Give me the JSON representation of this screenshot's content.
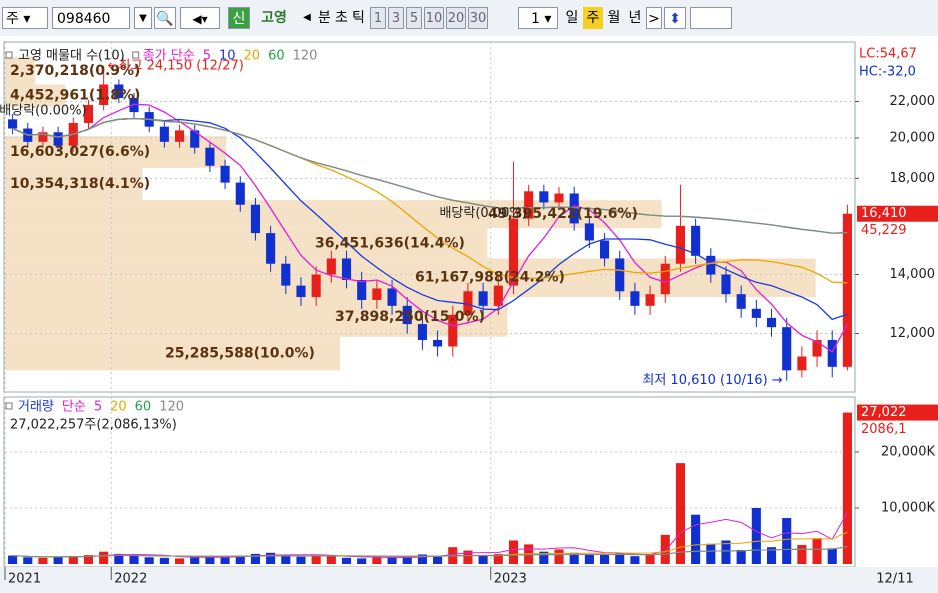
{
  "toolbar": {
    "market": "주",
    "code": "098460",
    "badge": "신",
    "name": "고영",
    "units": [
      "분",
      "초",
      "틱"
    ],
    "intervals": [
      "1",
      "3",
      "5",
      "10",
      "20",
      "30"
    ],
    "count": "1",
    "periods": [
      "일",
      "주",
      "월",
      "년"
    ],
    "active_period": "주"
  },
  "chart_data": [
    {
      "type": "candlestick",
      "title": "고영 매물대 수(10)",
      "legend_label": "종가 단순",
      "ma": [
        {
          "name": "5",
          "period": 5,
          "color": "#e020d8"
        },
        {
          "name": "10",
          "period": 10,
          "color": "#1a3ae0"
        },
        {
          "name": "20",
          "period": 20,
          "color": "#e8a800"
        },
        {
          "name": "60",
          "period": 60,
          "color": "#28a048"
        },
        {
          "name": "120",
          "period": 120,
          "color": "#8a8a8a"
        }
      ],
      "categories": [
        "2021",
        null,
        null,
        null,
        null,
        null,
        null,
        "2022",
        null,
        null,
        null,
        null,
        null,
        null,
        null,
        null,
        null,
        null,
        null,
        null,
        null,
        null,
        null,
        null,
        null,
        null,
        null,
        null,
        null,
        null,
        null,
        null,
        "2023",
        null,
        null,
        null,
        null,
        null,
        null,
        null,
        null,
        null,
        null,
        null,
        null,
        null,
        null,
        null,
        null,
        null,
        null,
        null,
        null,
        null,
        null,
        null
      ],
      "open": [
        21000,
        20500,
        19800,
        20300,
        19600,
        20800,
        21800,
        23000,
        22200,
        21400,
        20600,
        19800,
        20400,
        19500,
        18600,
        17800,
        16800,
        15600,
        14400,
        13600,
        13200,
        14000,
        14600,
        13800,
        13100,
        13500,
        12900,
        12300,
        11800,
        11600,
        12600,
        13400,
        12900,
        13600,
        16200,
        17400,
        16900,
        17300,
        16000,
        15300,
        14600,
        13400,
        12900,
        13300,
        14400,
        15900,
        14700,
        14000,
        13300,
        12800,
        12500,
        12200,
        10900,
        11300,
        11800,
        11000
      ],
      "high": [
        21300,
        20800,
        20600,
        20600,
        21100,
        22100,
        24150,
        23300,
        22500,
        21700,
        20900,
        20700,
        20700,
        19800,
        18900,
        18100,
        17100,
        15900,
        14700,
        13900,
        14300,
        14900,
        14900,
        14100,
        13800,
        13800,
        13200,
        12600,
        12100,
        12900,
        13700,
        13700,
        13900,
        18800,
        17700,
        17700,
        17600,
        17600,
        16300,
        15600,
        14900,
        13700,
        13600,
        14700,
        17700,
        16200,
        15000,
        14300,
        13600,
        13100,
        12800,
        12500,
        11600,
        12100,
        12100,
        16800
      ],
      "low": [
        20200,
        19500,
        19500,
        19300,
        19300,
        20500,
        21500,
        21900,
        21100,
        20300,
        19500,
        19500,
        19200,
        18300,
        17500,
        16500,
        15300,
        14100,
        13300,
        12900,
        12900,
        13700,
        13500,
        12800,
        12800,
        12600,
        12000,
        11500,
        11300,
        11300,
        12300,
        12600,
        12600,
        13300,
        15900,
        16600,
        16600,
        15700,
        15000,
        14300,
        13100,
        12600,
        12600,
        13000,
        14100,
        14400,
        13700,
        13000,
        12500,
        12200,
        11900,
        10610,
        10700,
        11000,
        10700,
        10900
      ],
      "close": [
        20500,
        19800,
        20300,
        19600,
        20800,
        21800,
        23000,
        22200,
        21400,
        20600,
        19800,
        20400,
        19500,
        18600,
        17800,
        16800,
        15600,
        14400,
        13600,
        13200,
        14000,
        14600,
        13800,
        13100,
        13500,
        12900,
        12300,
        11800,
        11600,
        12600,
        13400,
        12900,
        13600,
        16200,
        17400,
        16900,
        17300,
        16000,
        15300,
        14600,
        13400,
        12900,
        13300,
        14400,
        15900,
        14700,
        14000,
        13300,
        12800,
        12500,
        12200,
        10900,
        11300,
        11800,
        11000,
        16410
      ],
      "up_color": "#e8201c",
      "down_color": "#1030d0",
      "log_scale": true,
      "ylim": [
        10300,
        25700
      ],
      "yticks": [
        {
          "value": 12000,
          "label": "12,000"
        },
        {
          "value": 14000,
          "label": "14,000"
        },
        {
          "value": 18000,
          "label": "18,000"
        },
        {
          "value": 20000,
          "label": "20,000"
        },
        {
          "value": 22000,
          "label": "22,000"
        }
      ],
      "profile": [
        {
          "low": 10900,
          "high": 11900,
          "volume": 25285588,
          "pct": 10.0,
          "label": "25,285,588(10.0%)"
        },
        {
          "low": 11900,
          "high": 13200,
          "volume": 37898250,
          "pct": 15.0,
          "label": "37,898,250(15.0%)"
        },
        {
          "low": 13200,
          "high": 14600,
          "volume": 61167988,
          "pct": 24.2,
          "label": "61,167,988(24.2%)"
        },
        {
          "low": 14600,
          "high": 15800,
          "volume": 36451636,
          "pct": 14.4,
          "label": "36,451,636(14.4%)"
        },
        {
          "low": 15800,
          "high": 17000,
          "volume": 49395422,
          "pct": 19.6,
          "label": "49,395,422(19.6%)"
        },
        {
          "low": 17000,
          "high": 18500,
          "volume": 10354318,
          "pct": 4.1,
          "label": "10,354,318(4.1%)"
        },
        {
          "low": 18500,
          "high": 20100,
          "volume": 16603027,
          "pct": 6.6,
          "label": "16,603,027(6.6%)"
        },
        {
          "low": 21700,
          "high": 23000,
          "volume": 4452961,
          "pct": 1.8,
          "label": "4,452,961(1.8%)"
        },
        {
          "low": 23000,
          "high": 24700,
          "volume": 2370218,
          "pct": 0.9,
          "label": "2,370,218(0.9%)"
        }
      ],
      "annotations": [
        {
          "text": "←최고 24,150 (12/27)",
          "index": 6,
          "price": 24150,
          "color": "#e8201c",
          "side": "right"
        },
        {
          "text": "최저 10,610 (10/16) →",
          "index": 51,
          "price": 10610,
          "color": "#1030d0",
          "side": "left"
        },
        {
          "text": "배당락(0.00%)",
          "index": 2,
          "price": 20900,
          "color": "#222222",
          "side": "center"
        },
        {
          "text": "배당락(0.00%)",
          "index": 31,
          "price": 16000,
          "color": "#222222",
          "side": "center"
        }
      ],
      "side_labels": [
        {
          "text": "LC:54,67",
          "color": "#e8201c"
        },
        {
          "text": "HC:-32,0",
          "color": "#1030d0"
        }
      ],
      "last_label": "16,410",
      "ma_label": "45,229"
    },
    {
      "type": "bar",
      "title": "거래량",
      "legend_label": "단순",
      "ma": [
        {
          "name": "5",
          "period": 5,
          "color": "#e020d8"
        },
        {
          "name": "20",
          "period": 20,
          "color": "#e8a800"
        },
        {
          "name": "60",
          "period": 60,
          "color": "#28a048"
        },
        {
          "name": "120",
          "period": 120,
          "color": "#8a8a8a"
        }
      ],
      "values": [
        1500000,
        1200000,
        1100000,
        1300000,
        1400000,
        1600000,
        2200000,
        1800000,
        1500000,
        1200000,
        1100000,
        1000000,
        1300000,
        1400000,
        1200000,
        1500000,
        1800000,
        2000000,
        1600000,
        1300000,
        1500000,
        1400000,
        1100000,
        1000000,
        1200000,
        1100000,
        1300000,
        1700000,
        1500000,
        3000000,
        2400000,
        1600000,
        1800000,
        4200000,
        3500000,
        2200000,
        2600000,
        2000000,
        1800000,
        1600000,
        1900000,
        1400000,
        1600000,
        5200000,
        18000000,
        8800000,
        3600000,
        4200000,
        2500000,
        10000000,
        3000000,
        8200000,
        3400000,
        4600000,
        2800000,
        27022257
      ],
      "ylim": [
        0,
        29800000
      ],
      "yticks": [
        {
          "value": 10000000,
          "label": "10,000K"
        },
        {
          "value": 20000000,
          "label": "20,000K"
        }
      ],
      "info": "27,022,257주(2,086,13%)",
      "last_label": "27,022",
      "ma_label": "2086,1",
      "x_end_label": "12/11"
    }
  ]
}
